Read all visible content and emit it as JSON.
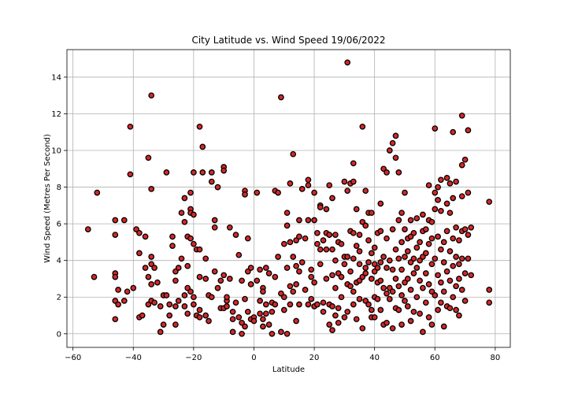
{
  "chart_data": {
    "type": "scatter",
    "title": "City Latitude vs. Wind Speed 19/06/2022",
    "xlabel": "Latitude",
    "ylabel": "Wind Speed (Metres Per Second)",
    "xlim": [
      -62,
      85
    ],
    "ylim": [
      -0.74,
      15.5
    ],
    "xticks": [
      -60,
      -40,
      -20,
      0,
      20,
      40,
      60,
      80
    ],
    "yticks": [
      0,
      2,
      4,
      6,
      8,
      10,
      12,
      14
    ],
    "grid": true,
    "marker": {
      "face": "#d62728",
      "edge": "#000000",
      "shape": "circle"
    },
    "points": [
      [
        -55,
        5.7
      ],
      [
        -53,
        3.1
      ],
      [
        -52,
        7.7
      ],
      [
        -46,
        6.2
      ],
      [
        -46,
        5.4
      ],
      [
        -46,
        3.3
      ],
      [
        -46,
        3.1
      ],
      [
        -46,
        1.8
      ],
      [
        -46,
        0.8
      ],
      [
        -45,
        2.4
      ],
      [
        -45,
        1.6
      ],
      [
        -43,
        6.2
      ],
      [
        -43,
        1.8
      ],
      [
        -42,
        2.3
      ],
      [
        -41,
        11.3
      ],
      [
        -41,
        8.7
      ],
      [
        -40,
        2.5
      ],
      [
        -39,
        5.7
      ],
      [
        -38,
        5.5
      ],
      [
        -38,
        4.4
      ],
      [
        -38,
        0.9
      ],
      [
        -37,
        1.0
      ],
      [
        -36,
        5.3
      ],
      [
        -36,
        3.6
      ],
      [
        -35,
        9.6
      ],
      [
        -35,
        3.1
      ],
      [
        -35,
        1.6
      ],
      [
        -34,
        13.0
      ],
      [
        -34,
        7.9
      ],
      [
        -34,
        4.2
      ],
      [
        -34,
        3.8
      ],
      [
        -34,
        2.7
      ],
      [
        -34,
        1.8
      ],
      [
        -33,
        3.6
      ],
      [
        -33,
        1.7
      ],
      [
        -32,
        2.8
      ],
      [
        -31,
        0.1
      ],
      [
        -31,
        1.5
      ],
      [
        -30,
        0.5
      ],
      [
        -30,
        2.1
      ],
      [
        -29,
        8.8
      ],
      [
        -29,
        2.1
      ],
      [
        -28,
        1.6
      ],
      [
        -28,
        1.0
      ],
      [
        -27,
        4.8
      ],
      [
        -27,
        5.3
      ],
      [
        -26,
        3.4
      ],
      [
        -26,
        2.9
      ],
      [
        -26,
        1.5
      ],
      [
        -26,
        0.5
      ],
      [
        -25,
        3.6
      ],
      [
        -25,
        1.8
      ],
      [
        -24,
        6.6
      ],
      [
        -24,
        4.1
      ],
      [
        -23,
        7.4
      ],
      [
        -23,
        6.1
      ],
      [
        -23,
        2.1
      ],
      [
        -23,
        1.5
      ],
      [
        -22,
        5.3
      ],
      [
        -22,
        3.7
      ],
      [
        -22,
        2.5
      ],
      [
        -22,
        1.1
      ],
      [
        -21,
        7.7
      ],
      [
        -21,
        6.8
      ],
      [
        -21,
        6.6
      ],
      [
        -21,
        5.2
      ],
      [
        -21,
        2.3
      ],
      [
        -20,
        8.8
      ],
      [
        -20,
        6.5
      ],
      [
        -20,
        4.9
      ],
      [
        -20,
        2.0
      ],
      [
        -20,
        1.6
      ],
      [
        -19,
        4.6
      ],
      [
        -19,
        1.0
      ],
      [
        -18,
        11.3
      ],
      [
        -18,
        4.6
      ],
      [
        -18,
        3.1
      ],
      [
        -18,
        1.3
      ],
      [
        -18,
        0.9
      ],
      [
        -17,
        10.2
      ],
      [
        -17,
        8.8
      ],
      [
        -16,
        4.1
      ],
      [
        -16,
        3.0
      ],
      [
        -16,
        1.0
      ],
      [
        -15,
        2.1
      ],
      [
        -15,
        0.7
      ],
      [
        -14,
        8.8
      ],
      [
        -14,
        8.3
      ],
      [
        -14,
        2.0
      ],
      [
        -13,
        6.2
      ],
      [
        -13,
        5.8
      ],
      [
        -13,
        3.4
      ],
      [
        -12,
        8.0
      ],
      [
        -12,
        2.5
      ],
      [
        -11,
        1.4
      ],
      [
        -11,
        2.9
      ],
      [
        -10,
        9.1
      ],
      [
        -10,
        8.9
      ],
      [
        -10,
        3.2
      ],
      [
        -10,
        1.4
      ],
      [
        -9,
        1.8
      ],
      [
        -9,
        1.5
      ],
      [
        -9,
        2.0
      ],
      [
        -8,
        5.8
      ],
      [
        -8,
        3.0
      ],
      [
        -7,
        1.2
      ],
      [
        -7,
        0.8
      ],
      [
        -7,
        0.1
      ],
      [
        -6,
        5.4
      ],
      [
        -6,
        1.7
      ],
      [
        -5,
        4.3
      ],
      [
        -5,
        0.9
      ],
      [
        -4,
        2.9
      ],
      [
        -4,
        0.6
      ],
      [
        -4,
        0.0
      ],
      [
        -3,
        7.8
      ],
      [
        -3,
        7.6
      ],
      [
        -3,
        1.9
      ],
      [
        -3,
        0.4
      ],
      [
        -2,
        5.2
      ],
      [
        -2,
        3.4
      ],
      [
        -2,
        1.2
      ],
      [
        -1,
        3.6
      ],
      [
        -1,
        2.7
      ],
      [
        -1,
        0.8
      ],
      [
        0,
        0.9
      ],
      [
        0,
        0.7
      ],
      [
        1,
        7.7
      ],
      [
        1,
        2.9
      ],
      [
        2,
        3.5
      ],
      [
        2,
        1.8
      ],
      [
        2,
        1.1
      ],
      [
        3,
        2.5
      ],
      [
        3,
        2.3
      ],
      [
        3,
        0.8
      ],
      [
        3,
        0.4
      ],
      [
        4,
        3.6
      ],
      [
        4,
        1.6
      ],
      [
        4,
        1.1
      ],
      [
        5,
        3.3
      ],
      [
        5,
        0.5
      ],
      [
        6,
        1.7
      ],
      [
        6,
        1.2
      ],
      [
        6,
        0.0
      ],
      [
        7,
        7.8
      ],
      [
        7,
        3.1
      ],
      [
        7,
        1.6
      ],
      [
        8,
        7.7
      ],
      [
        8,
        4.2
      ],
      [
        9,
        12.9
      ],
      [
        9,
        2.2
      ],
      [
        9,
        0.1
      ],
      [
        10,
        4.9
      ],
      [
        10,
        2.0
      ],
      [
        10,
        1.3
      ],
      [
        11,
        6.6
      ],
      [
        11,
        5.9
      ],
      [
        11,
        3.6
      ],
      [
        11,
        0.0
      ],
      [
        12,
        8.2
      ],
      [
        12,
        5.0
      ],
      [
        12,
        2.6
      ],
      [
        12,
        1.6
      ],
      [
        13,
        9.8
      ],
      [
        13,
        4.2
      ],
      [
        13,
        2.3
      ],
      [
        14,
        5.1
      ],
      [
        14,
        3.7
      ],
      [
        14,
        2.7
      ],
      [
        14,
        0.7
      ],
      [
        15,
        6.2
      ],
      [
        15,
        5.3
      ],
      [
        15,
        3.4
      ],
      [
        15,
        1.6
      ],
      [
        16,
        7.9
      ],
      [
        16,
        3.9
      ],
      [
        17,
        5.2
      ],
      [
        17,
        2.4
      ],
      [
        18,
        8.1
      ],
      [
        18,
        8.4
      ],
      [
        18,
        6.2
      ],
      [
        18,
        1.6
      ],
      [
        19,
        3.5
      ],
      [
        19,
        3.1
      ],
      [
        19,
        1.9
      ],
      [
        20,
        7.7
      ],
      [
        20,
        6.2
      ],
      [
        20,
        2.8
      ],
      [
        20,
        1.5
      ],
      [
        21,
        5.5
      ],
      [
        21,
        4.9
      ],
      [
        21,
        1.6
      ],
      [
        22,
        7.0
      ],
      [
        22,
        6.9
      ],
      [
        22,
        4.6
      ],
      [
        22,
        3.8
      ],
      [
        23,
        5.1
      ],
      [
        23,
        1.7
      ],
      [
        23,
        1.2
      ],
      [
        24,
        6.8
      ],
      [
        24,
        5.5
      ],
      [
        24,
        4.6
      ],
      [
        24,
        3.0
      ],
      [
        25,
        8.1
      ],
      [
        25,
        5.4
      ],
      [
        25,
        1.6
      ],
      [
        25,
        0.5
      ],
      [
        26,
        7.4
      ],
      [
        26,
        4.6
      ],
      [
        26,
        3.2
      ],
      [
        26,
        1.5
      ],
      [
        26,
        0.2
      ],
      [
        27,
        5.4
      ],
      [
        27,
        4.0
      ],
      [
        27,
        2.5
      ],
      [
        27,
        1.0
      ],
      [
        28,
        5.0
      ],
      [
        28,
        3.3
      ],
      [
        28,
        1.4
      ],
      [
        28,
        0.6
      ],
      [
        29,
        4.9
      ],
      [
        29,
        3.1
      ],
      [
        29,
        2.0
      ],
      [
        30,
        8.3
      ],
      [
        30,
        4.2
      ],
      [
        30,
        3.8
      ],
      [
        30,
        0.9
      ],
      [
        31,
        14.8
      ],
      [
        31,
        7.8
      ],
      [
        31,
        4.2
      ],
      [
        31,
        2.7
      ],
      [
        31,
        1.2
      ],
      [
        32,
        8.2
      ],
      [
        32,
        5.6
      ],
      [
        32,
        3.4
      ],
      [
        32,
        2.6
      ],
      [
        33,
        8.3
      ],
      [
        33,
        9.3
      ],
      [
        33,
        5.5
      ],
      [
        33,
        4.1
      ],
      [
        33,
        2.3
      ],
      [
        33,
        1.6
      ],
      [
        34,
        6.8
      ],
      [
        34,
        4.8
      ],
      [
        34,
        2.8
      ],
      [
        34,
        0.8
      ],
      [
        35,
        5.4
      ],
      [
        35,
        4.5
      ],
      [
        35,
        3.8
      ],
      [
        35,
        2.9
      ],
      [
        35,
        1.9
      ],
      [
        36,
        11.3
      ],
      [
        36,
        6.1
      ],
      [
        36,
        3.1
      ],
      [
        36,
        0.3
      ],
      [
        37,
        7.8
      ],
      [
        37,
        5.9
      ],
      [
        37,
        3.6
      ],
      [
        37,
        3.3
      ],
      [
        37,
        1.8
      ],
      [
        38,
        6.6
      ],
      [
        38,
        5.1
      ],
      [
        38,
        3.9
      ],
      [
        38,
        1.6
      ],
      [
        39,
        6.6
      ],
      [
        39,
        4.4
      ],
      [
        39,
        3.0
      ],
      [
        39,
        1.3
      ],
      [
        39,
        0.9
      ],
      [
        40,
        4.7
      ],
      [
        40,
        3.8
      ],
      [
        40,
        3.4
      ],
      [
        40,
        2.0
      ],
      [
        40,
        0.9
      ],
      [
        41,
        5.5
      ],
      [
        41,
        3.6
      ],
      [
        41,
        2.8
      ],
      [
        41,
        1.9
      ],
      [
        42,
        7.1
      ],
      [
        42,
        5.6
      ],
      [
        42,
        3.9
      ],
      [
        42,
        2.9
      ],
      [
        42,
        1.3
      ],
      [
        43,
        9.0
      ],
      [
        43,
        4.2
      ],
      [
        43,
        2.5
      ],
      [
        43,
        0.5
      ],
      [
        44,
        8.8
      ],
      [
        44,
        5.2
      ],
      [
        44,
        3.6
      ],
      [
        44,
        2.2
      ],
      [
        44,
        0.6
      ],
      [
        45,
        10.0
      ],
      [
        45,
        4.0
      ],
      [
        45,
        2.5
      ],
      [
        45,
        1.9
      ],
      [
        46,
        10.4
      ],
      [
        46,
        5.7
      ],
      [
        46,
        3.5
      ],
      [
        46,
        2.3
      ],
      [
        46,
        0.3
      ],
      [
        47,
        10.8
      ],
      [
        47,
        9.6
      ],
      [
        47,
        4.6
      ],
      [
        47,
        3.0
      ],
      [
        47,
        1.4
      ],
      [
        48,
        8.8
      ],
      [
        48,
        6.2
      ],
      [
        48,
        4.1
      ],
      [
        48,
        2.6
      ],
      [
        48,
        1.3
      ],
      [
        49,
        6.6
      ],
      [
        49,
        5.0
      ],
      [
        49,
        3.5
      ],
      [
        49,
        2.1
      ],
      [
        49,
        0.5
      ],
      [
        50,
        7.7
      ],
      [
        50,
        5.7
      ],
      [
        50,
        4.2
      ],
      [
        50,
        2.8
      ],
      [
        50,
        1.8
      ],
      [
        51,
        5.2
      ],
      [
        51,
        4.5
      ],
      [
        51,
        3.0
      ],
      [
        51,
        1.5
      ],
      [
        52,
        6.2
      ],
      [
        52,
        5.3
      ],
      [
        52,
        3.9
      ],
      [
        52,
        2.4
      ],
      [
        52,
        0.7
      ],
      [
        53,
        5.5
      ],
      [
        53,
        4.1
      ],
      [
        53,
        3.3
      ],
      [
        53,
        1.2
      ],
      [
        54,
        6.3
      ],
      [
        54,
        4.7
      ],
      [
        54,
        3.6
      ],
      [
        54,
        2.0
      ],
      [
        55,
        5.0
      ],
      [
        55,
        4.0
      ],
      [
        55,
        2.9
      ],
      [
        55,
        1.1
      ],
      [
        56,
        6.5
      ],
      [
        56,
        5.6
      ],
      [
        56,
        4.2
      ],
      [
        56,
        2.5
      ],
      [
        56,
        0.1
      ],
      [
        57,
        5.7
      ],
      [
        57,
        4.4
      ],
      [
        57,
        3.3
      ],
      [
        57,
        1.7
      ],
      [
        58,
        8.1
      ],
      [
        58,
        6.2
      ],
      [
        58,
        4.9
      ],
      [
        58,
        2.7
      ],
      [
        58,
        0.9
      ],
      [
        59,
        6.1
      ],
      [
        59,
        5.2
      ],
      [
        59,
        3.8
      ],
      [
        59,
        2.3
      ],
      [
        59,
        0.5
      ],
      [
        60,
        11.2
      ],
      [
        60,
        7.7
      ],
      [
        60,
        6.8
      ],
      [
        60,
        4.1
      ],
      [
        60,
        2.1
      ],
      [
        61,
        8.0
      ],
      [
        61,
        7.3
      ],
      [
        61,
        5.3
      ],
      [
        61,
        3.2
      ],
      [
        61,
        1.3
      ],
      [
        62,
        8.4
      ],
      [
        62,
        6.7
      ],
      [
        62,
        4.6
      ],
      [
        62,
        2.8
      ],
      [
        62,
        1.7
      ],
      [
        63,
        5.0
      ],
      [
        63,
        3.9
      ],
      [
        63,
        2.3
      ],
      [
        63,
        0.4
      ],
      [
        64,
        8.5
      ],
      [
        64,
        7.1
      ],
      [
        64,
        5.6
      ],
      [
        64,
        3.4
      ],
      [
        64,
        1.5
      ],
      [
        65,
        8.2
      ],
      [
        65,
        6.6
      ],
      [
        65,
        4.5
      ],
      [
        65,
        2.9
      ],
      [
        65,
        1.4
      ],
      [
        66,
        11.0
      ],
      [
        66,
        7.4
      ],
      [
        66,
        5.2
      ],
      [
        66,
        3.7
      ],
      [
        66,
        2.0
      ],
      [
        67,
        8.3
      ],
      [
        67,
        5.8
      ],
      [
        67,
        4.2
      ],
      [
        67,
        2.6
      ],
      [
        67,
        1.3
      ],
      [
        68,
        5.1
      ],
      [
        68,
        3.8
      ],
      [
        68,
        3.0
      ],
      [
        68,
        1.0
      ],
      [
        69,
        11.9
      ],
      [
        69,
        9.2
      ],
      [
        69,
        7.5
      ],
      [
        69,
        5.6
      ],
      [
        69,
        4.1
      ],
      [
        69,
        2.4
      ],
      [
        70,
        9.5
      ],
      [
        70,
        5.7
      ],
      [
        70,
        3.3
      ],
      [
        70,
        1.8
      ],
      [
        71,
        11.1
      ],
      [
        71,
        7.7
      ],
      [
        71,
        5.4
      ],
      [
        71,
        4.1
      ],
      [
        72,
        5.8
      ],
      [
        72,
        3.2
      ],
      [
        78,
        7.2
      ],
      [
        78,
        2.4
      ],
      [
        78,
        1.7
      ]
    ]
  }
}
